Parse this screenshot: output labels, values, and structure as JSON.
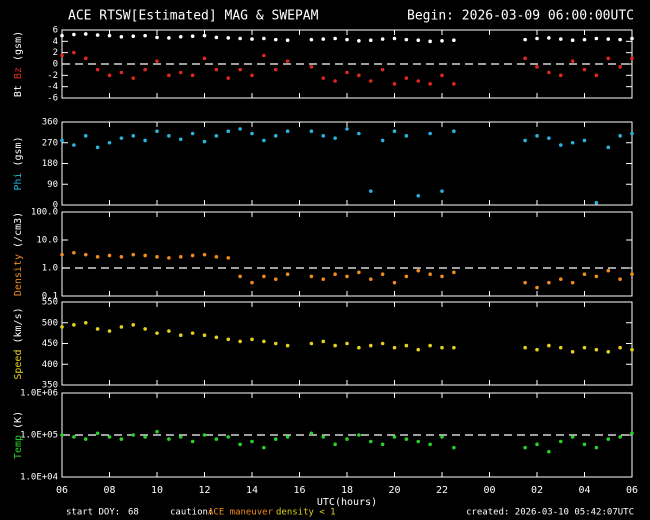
{
  "header": {
    "title": "ACE RTSW[Estimated] MAG & SWEPAM",
    "begin": "Begin: 2026-03-09 06:00:00UTC"
  },
  "chart_data": [
    {
      "type": "scatter",
      "ylabel": "(gsm)",
      "x": [
        0,
        0.5,
        1,
        1.5,
        2,
        2.5,
        3,
        3.5,
        4,
        4.5,
        5,
        5.5,
        6,
        6.5,
        7,
        7.5,
        8,
        8.5,
        9,
        9.5,
        10,
        10.5,
        11,
        11.5,
        12,
        12.5,
        13,
        13.5,
        14,
        14.5,
        15,
        15.5,
        16,
        16.5,
        17,
        17.5,
        18,
        18.5,
        19,
        19.5,
        20,
        20.5,
        21,
        21.5,
        22,
        22.5,
        23,
        23.5,
        24
      ],
      "xlim": [
        0,
        24
      ],
      "ylim": [
        -6,
        6
      ],
      "yticks": [
        -6,
        -4,
        -2,
        0,
        2,
        4,
        6
      ],
      "ref_line": 0,
      "series": [
        {
          "name": "Bt",
          "color": "#ffffff",
          "values": [
            5,
            5.2,
            5.3,
            5.1,
            5,
            4.8,
            4.9,
            5,
            4.7,
            4.6,
            4.8,
            4.9,
            5,
            4.7,
            4.6,
            4.5,
            4.4,
            4.5,
            4.3,
            4.2,
            null,
            4.3,
            4.4,
            4.5,
            4.3,
            4.1,
            4.2,
            4.4,
            4.5,
            4.3,
            4.2,
            4,
            4.1,
            4.2,
            null,
            null,
            null,
            null,
            null,
            4.3,
            4.5,
            4.6,
            4.4,
            4.2,
            4.3,
            4.5,
            4.4,
            4.3,
            4.5
          ]
        },
        {
          "name": "Bz",
          "color": "#e0281e",
          "values": [
            1.5,
            2,
            1,
            -1,
            -2,
            -1.5,
            -2.5,
            -1,
            0.5,
            -2,
            -1.5,
            -2,
            1,
            -1,
            -2.5,
            -1,
            -2,
            1.5,
            -1,
            0.5,
            null,
            -0.5,
            -2.5,
            -3,
            -1.5,
            -2,
            -3,
            -1,
            -3.5,
            -2.5,
            -3,
            -3.5,
            -2,
            -3.5,
            null,
            null,
            null,
            null,
            null,
            1,
            -0.5,
            -1.5,
            -2,
            0.5,
            -1,
            -2,
            1,
            -0.5,
            1
          ]
        }
      ]
    },
    {
      "type": "scatter",
      "ylabel": "(gsm)",
      "x": [
        0,
        0.5,
        1,
        1.5,
        2,
        2.5,
        3,
        3.5,
        4,
        4.5,
        5,
        5.5,
        6,
        6.5,
        7,
        7.5,
        8,
        8.5,
        9,
        9.5,
        10,
        10.5,
        11,
        11.5,
        12,
        12.5,
        13,
        13.5,
        14,
        14.5,
        15,
        15.5,
        16,
        16.5,
        17,
        17.5,
        18,
        18.5,
        19,
        19.5,
        20,
        20.5,
        21,
        21.5,
        22,
        22.5,
        23,
        23.5,
        24
      ],
      "xlim": [
        0,
        24
      ],
      "ylim": [
        0,
        360
      ],
      "yticks": [
        0,
        90,
        180,
        270,
        360
      ],
      "series": [
        {
          "name": "Phi",
          "color": "#28b4dc",
          "values": [
            280,
            260,
            300,
            250,
            270,
            290,
            300,
            280,
            320,
            300,
            285,
            310,
            275,
            300,
            320,
            330,
            310,
            280,
            300,
            320,
            null,
            320,
            300,
            290,
            330,
            310,
            60,
            280,
            320,
            300,
            40,
            310,
            60,
            320,
            null,
            null,
            null,
            null,
            null,
            280,
            300,
            290,
            260,
            270,
            280,
            10,
            250,
            300,
            310
          ]
        }
      ]
    },
    {
      "type": "scatter",
      "ylabel": "(/cm3)",
      "log": true,
      "x": [
        0,
        0.5,
        1,
        1.5,
        2,
        2.5,
        3,
        3.5,
        4,
        4.5,
        5,
        5.5,
        6,
        6.5,
        7,
        7.5,
        8,
        8.5,
        9,
        9.5,
        10,
        10.5,
        11,
        11.5,
        12,
        12.5,
        13,
        13.5,
        14,
        14.5,
        15,
        15.5,
        16,
        16.5,
        17,
        17.5,
        18,
        18.5,
        19,
        19.5,
        20,
        20.5,
        21,
        21.5,
        22,
        22.5,
        23,
        23.5,
        24
      ],
      "xlim": [
        0,
        24
      ],
      "ylim": [
        0.1,
        100
      ],
      "yticks": [
        0.1,
        {
          "value": 1,
          "label": "1.0"
        },
        {
          "value": 10,
          "label": "10.0"
        },
        {
          "value": 100,
          "label": "100.0"
        }
      ],
      "ref_line": 1,
      "series": [
        {
          "name": "Density",
          "color": "#f08c1e",
          "values": [
            3,
            3.5,
            3,
            2.5,
            2.8,
            2.5,
            3,
            2.8,
            2.5,
            2.3,
            2.5,
            2.8,
            3,
            2.5,
            2.3,
            0.5,
            0.3,
            0.5,
            0.4,
            0.6,
            null,
            0.5,
            0.4,
            0.6,
            0.5,
            0.7,
            0.4,
            0.6,
            0.3,
            0.5,
            0.8,
            0.6,
            0.5,
            0.7,
            null,
            null,
            null,
            null,
            null,
            0.3,
            0.2,
            0.3,
            0.4,
            0.3,
            0.6,
            0.5,
            0.8,
            0.4,
            0.6
          ]
        }
      ]
    },
    {
      "type": "scatter",
      "ylabel": "(km/s)",
      "x": [
        0,
        0.5,
        1,
        1.5,
        2,
        2.5,
        3,
        3.5,
        4,
        4.5,
        5,
        5.5,
        6,
        6.5,
        7,
        7.5,
        8,
        8.5,
        9,
        9.5,
        10,
        10.5,
        11,
        11.5,
        12,
        12.5,
        13,
        13.5,
        14,
        14.5,
        15,
        15.5,
        16,
        16.5,
        17,
        17.5,
        18,
        18.5,
        19,
        19.5,
        20,
        20.5,
        21,
        21.5,
        22,
        22.5,
        23,
        23.5,
        24
      ],
      "xlim": [
        0,
        24
      ],
      "ylim": [
        350,
        550
      ],
      "yticks": [
        350,
        400,
        450,
        500,
        550
      ],
      "series": [
        {
          "name": "Speed",
          "color": "#e6d21e",
          "values": [
            490,
            495,
            500,
            485,
            480,
            490,
            495,
            485,
            475,
            480,
            470,
            475,
            470,
            465,
            460,
            455,
            460,
            455,
            450,
            445,
            null,
            450,
            455,
            445,
            450,
            440,
            445,
            450,
            440,
            445,
            435,
            445,
            440,
            440,
            null,
            null,
            null,
            null,
            null,
            440,
            435,
            445,
            440,
            430,
            440,
            435,
            430,
            440,
            435
          ]
        }
      ]
    },
    {
      "type": "scatter",
      "ylabel": "(K)",
      "log": true,
      "xlabel": "UTC(hours)",
      "x": [
        0,
        0.5,
        1,
        1.5,
        2,
        2.5,
        3,
        3.5,
        4,
        4.5,
        5,
        5.5,
        6,
        6.5,
        7,
        7.5,
        8,
        8.5,
        9,
        9.5,
        10,
        10.5,
        11,
        11.5,
        12,
        12.5,
        13,
        13.5,
        14,
        14.5,
        15,
        15.5,
        16,
        16.5,
        17,
        17.5,
        18,
        18.5,
        19,
        19.5,
        20,
        20.5,
        21,
        21.5,
        22,
        22.5,
        23,
        23.5,
        24
      ],
      "xlim": [
        0,
        24
      ],
      "ylim": [
        10000,
        1000000
      ],
      "yticks": [
        {
          "value": 10000,
          "label": "1.0E+04"
        },
        {
          "value": 100000,
          "label": "1.0E+05"
        },
        {
          "value": 1000000,
          "label": "1.0E+06"
        }
      ],
      "ref_line": 100000,
      "xticks": [
        {
          "value": 0,
          "label": "06"
        },
        {
          "value": 2,
          "label": "08"
        },
        {
          "value": 4,
          "label": "10"
        },
        {
          "value": 6,
          "label": "12"
        },
        {
          "value": 8,
          "label": "14"
        },
        {
          "value": 10,
          "label": "16"
        },
        {
          "value": 12,
          "label": "18"
        },
        {
          "value": 14,
          "label": "20"
        },
        {
          "value": 16,
          "label": "22"
        },
        {
          "value": 18,
          "label": "00"
        },
        {
          "value": 20,
          "label": "02"
        },
        {
          "value": 22,
          "label": "04"
        },
        {
          "value": 24,
          "label": "06"
        }
      ],
      "series": [
        {
          "name": "Temp",
          "color": "#28d228",
          "values": [
            100000,
            90000,
            80000,
            110000,
            90000,
            80000,
            100000,
            90000,
            120000,
            80000,
            90000,
            70000,
            100000,
            80000,
            90000,
            60000,
            70000,
            50000,
            80000,
            90000,
            null,
            110000,
            90000,
            60000,
            80000,
            100000,
            70000,
            60000,
            90000,
            80000,
            70000,
            60000,
            90000,
            50000,
            null,
            null,
            null,
            null,
            null,
            50000,
            60000,
            40000,
            70000,
            90000,
            60000,
            50000,
            80000,
            90000,
            110000
          ]
        }
      ]
    }
  ],
  "footer": {
    "start_doy": "start DOY:",
    "doy": 68,
    "caution": "caution:",
    "maneuver": "ACE maneuver",
    "density_note": "density < 1",
    "created": "created: 2026-03-10 05:42:07UTC"
  }
}
